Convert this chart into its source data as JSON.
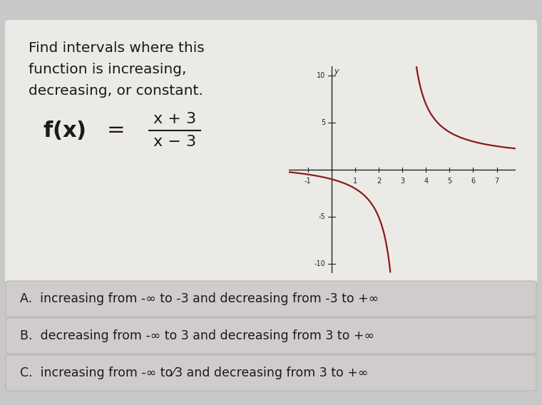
{
  "bg_color": "#c8c8c8",
  "card_color": "#e6e4e0",
  "title_lines": [
    "Find intervals where this",
    "function is increasing,",
    "decreasing, or constant."
  ],
  "formula_fx": "f(x)",
  "formula_eq": " = ",
  "formula_num": "x + 3",
  "formula_den": "x − 3",
  "graph": {
    "xmin": -1.8,
    "xmax": 7.8,
    "ymin": -11,
    "ymax": 11,
    "xticks": [
      -1,
      1,
      2,
      3,
      4,
      5,
      6,
      7
    ],
    "ytick_labels": [
      "-10",
      "-5",
      "5",
      "10"
    ],
    "ytick_vals": [
      -10,
      -5,
      5,
      10
    ],
    "curve_color": "#8b1a1a",
    "curve_linewidth": 1.6,
    "axis_color": "#222222"
  },
  "options": [
    "A.  increasing from -∞ to -3 and decreasing from -3 to +∞",
    "B.  decreasing from -∞ to 3 and decreasing from 3 to +∞",
    "C.  increasing from -∞ to⁄3 and decreasing from 3 to +∞"
  ],
  "option_bg": "#d0cccc",
  "option_border": "#b8b4b4",
  "title_fontsize": 14.5,
  "formula_fontsize": 22,
  "option_fontsize": 12.5
}
